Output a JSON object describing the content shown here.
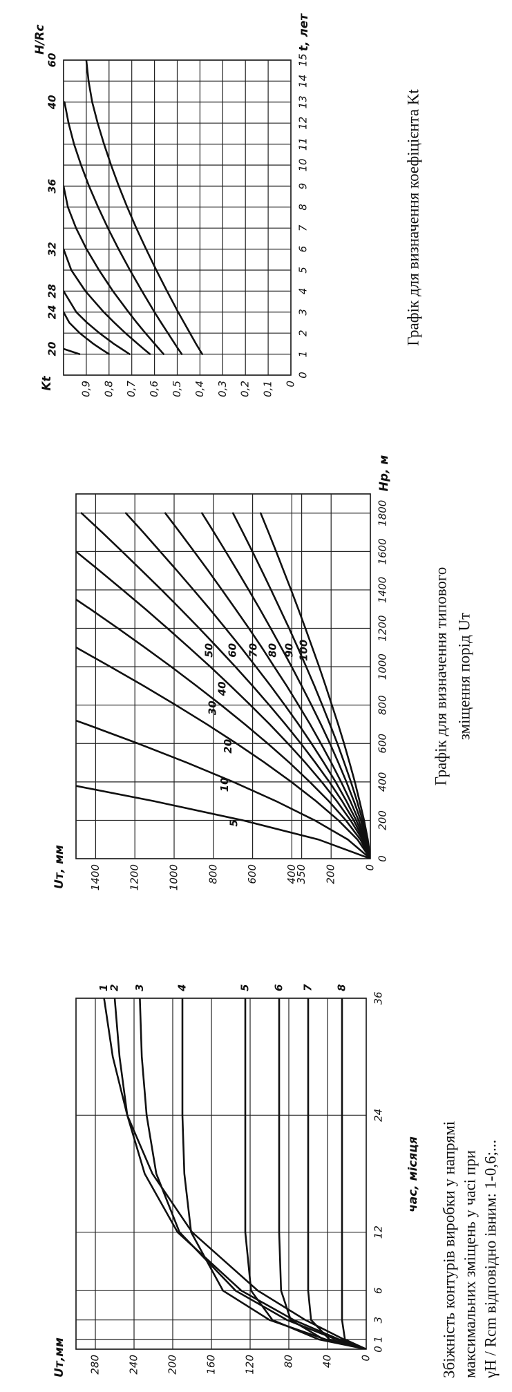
{
  "chart_data": [
    {
      "type": "line",
      "y_label": "Uт,мм",
      "x_label": "час, місяця",
      "caption": [
        "Збіжність контурів виробки у напрямі",
        "максимальних зміщень у часі при",
        "γH / Rcm    відповідно івним: 1-0,6;..."
      ],
      "x": [
        0,
        1,
        3,
        6,
        12,
        18,
        24,
        30,
        36
      ],
      "xlim": [
        0,
        36
      ],
      "xticks": [
        0,
        1,
        3,
        6,
        12,
        24,
        36
      ],
      "ylim": [
        0,
        300
      ],
      "yticks": [
        0,
        40,
        80,
        120,
        160,
        200,
        240,
        280
      ],
      "grid": true,
      "color": "#111111",
      "series": [
        {
          "name": "1",
          "values": [
            0,
            23,
            63,
            112,
            180,
            221,
            247,
            262,
            271
          ]
        },
        {
          "name": "2",
          "values": [
            0,
            28,
            75,
            129,
            195,
            229,
            247,
            255,
            260
          ]
        },
        {
          "name": "3",
          "values": [
            0,
            31,
            82,
            135,
            193,
            217,
            227,
            232,
            234
          ]
        },
        {
          "name": "4",
          "values": [
            0,
            42,
            100,
            148,
            181,
            188,
            190,
            190,
            190
          ]
        },
        {
          "name": "5",
          "values": [
            0,
            49,
            97,
            119,
            125,
            125,
            125,
            125,
            125
          ]
        },
        {
          "name": "6",
          "values": [
            0,
            44,
            78,
            88,
            90,
            90,
            90,
            90,
            90
          ]
        },
        {
          "name": "7",
          "values": [
            0,
            38,
            57,
            60,
            60,
            60,
            60,
            60,
            60
          ]
        },
        {
          "name": "8",
          "values": [
            0,
            22,
            25,
            25,
            25,
            25,
            25,
            25,
            25
          ]
        }
      ]
    },
    {
      "type": "line",
      "y_label": "Uт, мм",
      "x_label": "Hp, м",
      "caption": [
        "Графік для визначення типового",
        "зміщення порід Uт"
      ],
      "x": [
        0,
        100,
        200,
        300,
        400,
        500,
        600,
        700,
        800,
        900,
        1000,
        1100,
        1200,
        1300,
        1400,
        1500,
        1600,
        1700,
        1800
      ],
      "xlim": [
        0,
        1900
      ],
      "xticks": [
        0,
        200,
        400,
        600,
        800,
        1000,
        1200,
        1400,
        1600,
        1800
      ],
      "ylim": [
        0,
        1500
      ],
      "yticks": [
        0,
        200,
        350,
        400,
        600,
        800,
        1000,
        1200,
        1400
      ],
      "grid": true,
      "color": "#111111",
      "series": [
        {
          "name": "5",
          "values": [
            0,
            265,
            651,
            1104,
            1604,
            null,
            null,
            null,
            null,
            null,
            null,
            null,
            null,
            null,
            null,
            null,
            null,
            null,
            null
          ]
        },
        {
          "name": "10",
          "values": [
            0,
            115,
            284,
            481,
            699,
            934,
            1184,
            1447,
            1721,
            null,
            null,
            null,
            null,
            null,
            null,
            null,
            null,
            null,
            null
          ]
        },
        {
          "name": "20",
          "values": [
            0,
            66,
            163,
            277,
            403,
            538,
            682,
            833,
            991,
            1155,
            1325,
            1499,
            1678,
            null,
            null,
            null,
            null,
            null,
            null
          ]
        },
        {
          "name": "30",
          "values": [
            0,
            51,
            125,
            212,
            309,
            412,
            523,
            639,
            760,
            886,
            1015,
            1149,
            1286,
            1427,
            1572,
            null,
            null,
            null,
            null
          ]
        },
        {
          "name": "40",
          "values": [
            0,
            41,
            101,
            171,
            248,
            331,
            420,
            513,
            611,
            712,
            816,
            924,
            1034,
            1146,
            1262,
            1380,
            1500,
            null,
            null
          ]
        },
        {
          "name": "50",
          "values": [
            0,
            35,
            85,
            144,
            209,
            280,
            354,
            433,
            515,
            600,
            688,
            779,
            872,
            967,
            1064,
            1164,
            1265,
            1367,
            1472
          ]
        },
        {
          "name": "60",
          "values": [
            0,
            29,
            72,
            122,
            177,
            237,
            300,
            366,
            436,
            508,
            583,
            659,
            738,
            818,
            901,
            985,
            1071,
            1157,
            1246
          ]
        },
        {
          "name": "70",
          "values": [
            0,
            25,
            60,
            102,
            149,
            199,
            252,
            307,
            366,
            426,
            490,
            553,
            619,
            687,
            756,
            826,
            898,
            971,
            1045
          ]
        },
        {
          "name": "80",
          "values": [
            0,
            20,
            49,
            84,
            122,
            163,
            206,
            252,
            300,
            350,
            401,
            454,
            508,
            563,
            620,
            678,
            737,
            797,
            858
          ]
        },
        {
          "name": "90",
          "values": [
            0,
            16,
            40,
            68,
            99,
            133,
            168,
            206,
            245,
            285,
            327,
            370,
            414,
            460,
            506,
            553,
            601,
            650,
            700
          ]
        },
        {
          "name": "100",
          "values": [
            0,
            13,
            32,
            55,
            79,
            106,
            134,
            164,
            196,
            228,
            261,
            296,
            331,
            367,
            404,
            442,
            480,
            519,
            559
          ]
        }
      ]
    },
    {
      "type": "line",
      "y_label": "Kt",
      "x_label": "t, лет",
      "legend_title": "H/Rc",
      "caption": [
        "Графік для визначення коефіцієнта Kt"
      ],
      "x": [
        1,
        1.25,
        1.5,
        2,
        2.5,
        3,
        4,
        5,
        6,
        7,
        8,
        9,
        10,
        11,
        12,
        13,
        14,
        15
      ],
      "xlim": [
        0,
        15
      ],
      "xticks": [
        0,
        1,
        2,
        3,
        4,
        5,
        6,
        7,
        8,
        9,
        10,
        11,
        12,
        13,
        14,
        15
      ],
      "ylim": [
        0,
        1
      ],
      "yticks": [
        0,
        {
          "value": 0.1,
          "label": "0,1"
        },
        {
          "value": 0.2,
          "label": "0,2"
        },
        {
          "value": 0.3,
          "label": "0,3"
        },
        {
          "value": 0.4,
          "label": "0,4"
        },
        {
          "value": 0.5,
          "label": "0,5"
        },
        {
          "value": 0.6,
          "label": "0,6"
        },
        {
          "value": 0.7,
          "label": "0,7"
        },
        {
          "value": 0.8,
          "label": "0,8"
        },
        {
          "value": 0.9,
          "label": "0,9"
        }
      ],
      "grid": true,
      "color": "#111111",
      "series": [
        {
          "name": "20",
          "values": [
            0.93,
            1.0,
            null,
            null,
            null,
            null,
            null,
            null,
            null,
            null,
            null,
            null,
            null,
            null,
            null,
            null,
            null,
            null
          ]
        },
        {
          "name": "24",
          "values": [
            0.8,
            0.836,
            0.87,
            0.929,
            0.975,
            1.0,
            null,
            null,
            null,
            null,
            null,
            null,
            null,
            null,
            null,
            null,
            null,
            null
          ]
        },
        {
          "name": "28",
          "values": [
            0.71,
            0.745,
            0.78,
            0.842,
            0.897,
            0.944,
            1.0,
            null,
            null,
            null,
            null,
            null,
            null,
            null,
            null,
            null,
            null,
            null
          ]
        },
        {
          "name": "32",
          "values": [
            0.62,
            0.648,
            0.675,
            0.728,
            0.777,
            0.823,
            0.904,
            0.966,
            1.0,
            null,
            null,
            null,
            null,
            null,
            null,
            null,
            null,
            null
          ]
        },
        {
          "name": "36",
          "values": [
            0.56,
            0.58,
            0.6,
            0.64,
            0.678,
            0.714,
            0.783,
            0.844,
            0.899,
            0.945,
            0.981,
            1.0,
            null,
            null,
            null,
            null,
            null,
            null
          ]
        },
        {
          "name": "40",
          "values": [
            0.48,
            0.496,
            0.511,
            0.541,
            0.571,
            0.6,
            0.655,
            0.708,
            0.758,
            0.805,
            0.848,
            0.888,
            0.923,
            0.954,
            0.978,
            0.996,
            null,
            null
          ]
        },
        {
          "name": "60",
          "values": [
            0.39,
            0.404,
            0.418,
            0.444,
            0.47,
            0.496,
            0.545,
            0.592,
            0.637,
            0.68,
            0.72,
            0.757,
            0.791,
            0.822,
            0.85,
            0.874,
            0.89,
            0.9
          ]
        }
      ]
    }
  ]
}
